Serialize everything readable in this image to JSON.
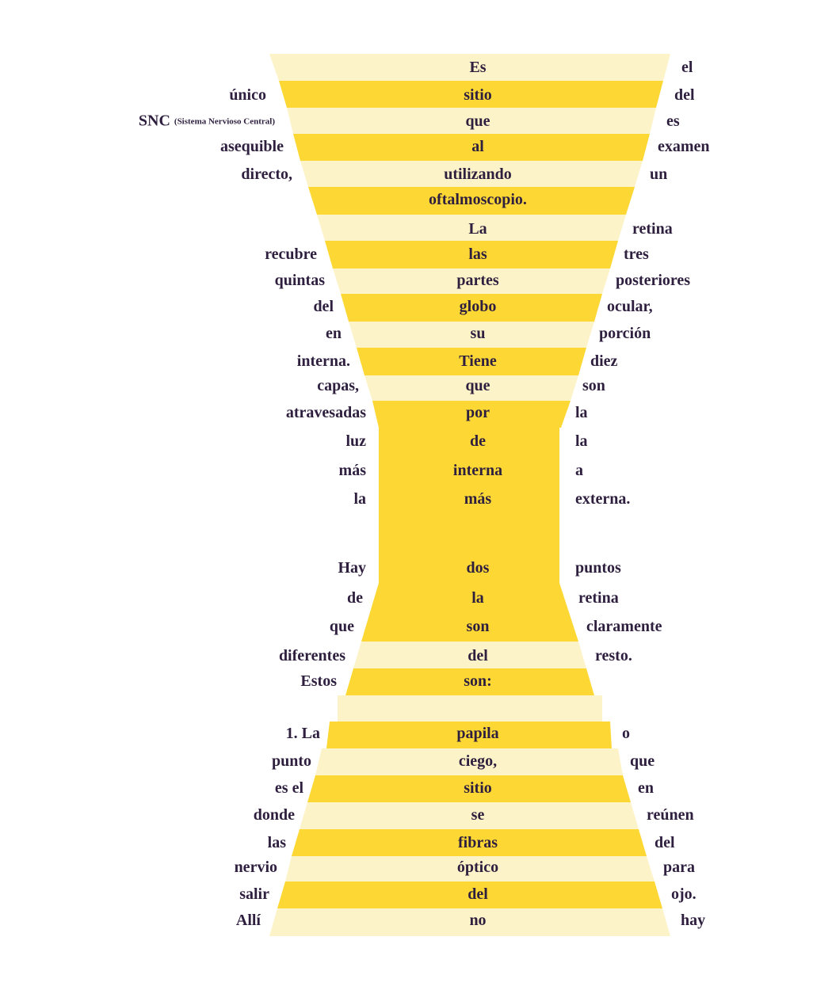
{
  "colors": {
    "band_light": "#fdf3c8",
    "band_dark": "#fdd835",
    "text": "#2e1f3f",
    "background": "#ffffff"
  },
  "rows": [
    {
      "left": "",
      "center": "Es",
      "right": "el"
    },
    {
      "left": "único",
      "center": "sitio",
      "right": "del"
    },
    {
      "left": "SNC",
      "left_small": "(Sistema Nervioso Central)",
      "center": "que",
      "right": "es"
    },
    {
      "left": "asequible",
      "center": "al",
      "right": "examen"
    },
    {
      "left": "directo,",
      "center": "utilizando",
      "right": "un"
    },
    {
      "left": "",
      "center": "oftalmoscopio.",
      "right": ""
    },
    {
      "left": "",
      "center": "La",
      "right": "retina"
    },
    {
      "left": "recubre",
      "center": "las",
      "right": "tres"
    },
    {
      "left": "quintas",
      "center": "partes",
      "right": "posteriores"
    },
    {
      "left": "del",
      "center": "globo",
      "right": "ocular,"
    },
    {
      "left": "en",
      "center": "su",
      "right": "porción"
    },
    {
      "left": "interna.",
      "center": "Tiene",
      "right": "diez"
    },
    {
      "left": "capas,",
      "center": "que",
      "right": "son"
    },
    {
      "left": "atravesadas",
      "center": "por",
      "right": "la"
    },
    {
      "left": "luz",
      "center": "de",
      "right": "la"
    },
    {
      "left": "más",
      "center": "interna",
      "right": "a"
    },
    {
      "left": "la",
      "center": "más",
      "right": "externa."
    },
    {
      "left": "Hay",
      "center": "dos",
      "right": "puntos"
    },
    {
      "left": "de",
      "center": "la",
      "right": "retina"
    },
    {
      "left": "que",
      "center": "son",
      "right": "claramente"
    },
    {
      "left": "diferentes",
      "center": "del",
      "right": "resto."
    },
    {
      "left": "Estos",
      "center": "son:",
      "right": ""
    },
    {
      "left": "1. La",
      "center": "papila",
      "right": "o"
    },
    {
      "left": "punto",
      "center": "ciego,",
      "right": "que"
    },
    {
      "left": "es el",
      "center": "sitio",
      "right": "en"
    },
    {
      "left": "donde",
      "center": "se",
      "right": "reúnen"
    },
    {
      "left": "las",
      "center": "fibras",
      "right": "del"
    },
    {
      "left": "nervio",
      "center": "óptico",
      "right": "para"
    },
    {
      "left": "salir",
      "center": "del",
      "right": "ojo."
    },
    {
      "left": "Allí",
      "center": "no",
      "right": "hay"
    }
  ]
}
